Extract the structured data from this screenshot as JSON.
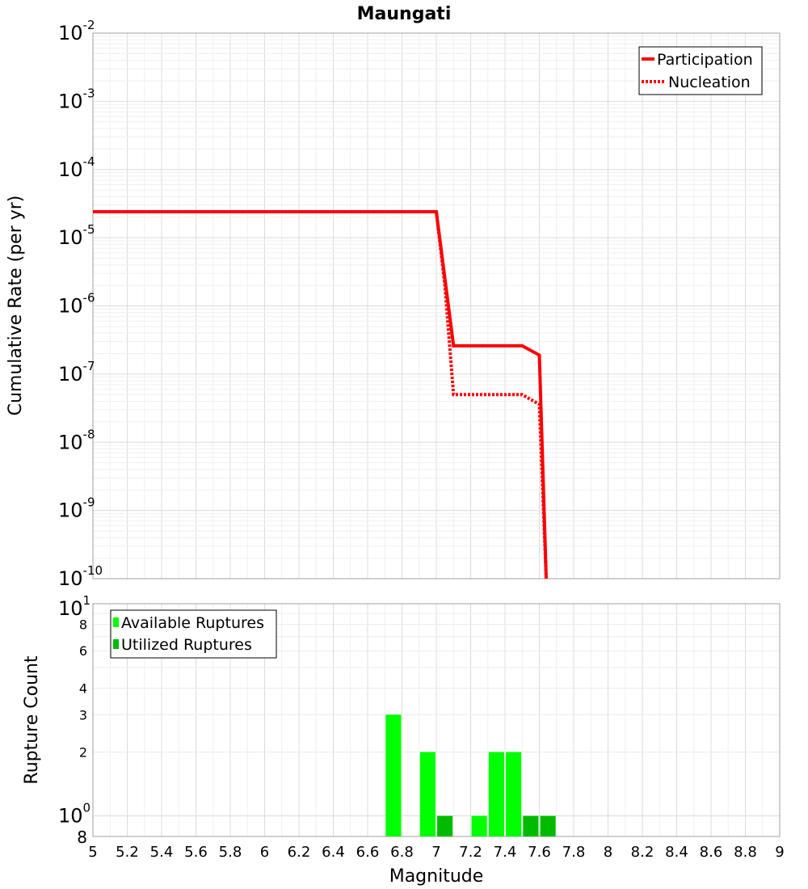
{
  "chart_data": [
    {
      "type": "line",
      "title": "Maungati",
      "ylabel": "Cumulative Rate (per yr)",
      "xlim": [
        5,
        9
      ],
      "ylim": [
        1e-10,
        0.01
      ],
      "yscale": "log",
      "grid": true,
      "legend_position": "top-right",
      "y_ticks": [
        {
          "base": "10",
          "exp": "-2"
        },
        {
          "base": "10",
          "exp": "-3"
        },
        {
          "base": "10",
          "exp": "-4"
        },
        {
          "base": "10",
          "exp": "-5"
        },
        {
          "base": "10",
          "exp": "-6"
        },
        {
          "base": "10",
          "exp": "-7"
        },
        {
          "base": "10",
          "exp": "-8"
        },
        {
          "base": "10",
          "exp": "-9"
        },
        {
          "base": "10",
          "exp": "-10"
        }
      ],
      "series": [
        {
          "name": "Participation",
          "color": "#ff0000",
          "style": "solid",
          "x": [
            5.0,
            7.0,
            7.1,
            7.5,
            7.6,
            7.64
          ],
          "y": [
            2.4e-05,
            2.4e-05,
            2.6e-07,
            2.6e-07,
            1.9e-07,
            1e-10
          ]
        },
        {
          "name": "Nucleation",
          "color": "#ff0000",
          "style": "dotted",
          "x": [
            5.0,
            7.0,
            7.05,
            7.1,
            7.5,
            7.6,
            7.64
          ],
          "y": [
            2.4e-05,
            2.4e-05,
            2e-06,
            5e-08,
            5e-08,
            3.6e-08,
            1e-10
          ]
        }
      ]
    },
    {
      "type": "bar",
      "xlabel": "Magnitude",
      "ylabel": "Rupture Count",
      "xlim": [
        5,
        9
      ],
      "x_ticks": [
        "5",
        "5.2",
        "5.4",
        "5.6",
        "5.8",
        "6",
        "6.2",
        "6.4",
        "6.6",
        "6.8",
        "7",
        "7.2",
        "7.4",
        "7.6",
        "7.8",
        "8",
        "8.2",
        "8.4",
        "8.6",
        "8.8",
        "9"
      ],
      "yscale": "log",
      "ylim": [
        0.8,
        10
      ],
      "bar_width": 0.09,
      "grid": true,
      "legend_position": "top-left",
      "y_ticks": [
        {
          "value": 0.8,
          "label": "8",
          "exp": ""
        },
        {
          "value": 1,
          "label": "10",
          "exp": "0"
        },
        {
          "value": 2,
          "label": "2",
          "exp": ""
        },
        {
          "value": 3,
          "label": "3",
          "exp": ""
        },
        {
          "value": 4,
          "label": "4",
          "exp": ""
        },
        {
          "value": 6,
          "label": "6",
          "exp": ""
        },
        {
          "value": 8,
          "label": "8",
          "exp": ""
        },
        {
          "value": 10,
          "label": "10",
          "exp": "1"
        }
      ],
      "series": [
        {
          "name": "Available Ruptures",
          "color": "#00ff00",
          "x": [
            6.75,
            6.95,
            7.25,
            7.35,
            7.45
          ],
          "values": [
            3,
            2,
            1,
            2,
            2
          ]
        },
        {
          "name": "Utilized Ruptures",
          "color": "#00bb00",
          "x": [
            7.05,
            7.55,
            7.65
          ],
          "values": [
            1,
            1,
            1
          ]
        }
      ]
    }
  ]
}
